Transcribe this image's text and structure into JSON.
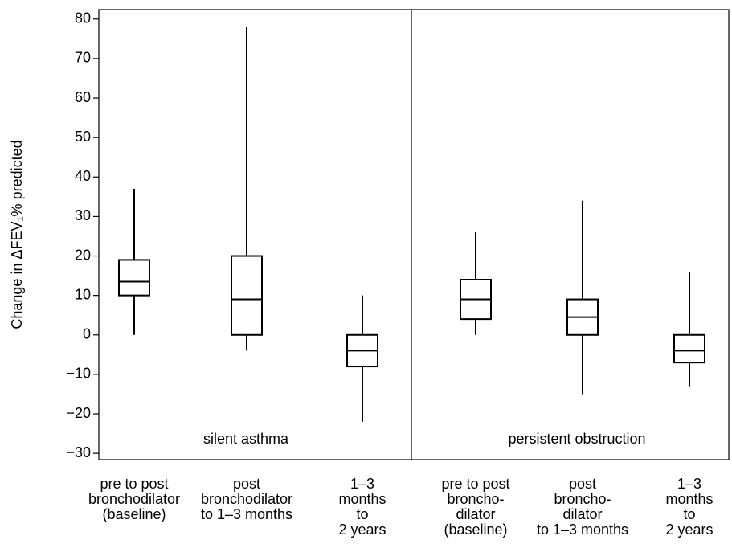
{
  "chart_data": {
    "type": "box",
    "y_label": "Change in ΔFEV₁% predicted",
    "ylim": [
      -31.6,
      82.4
    ],
    "yticks": [
      {
        "value": -30,
        "label": "−30"
      },
      {
        "value": -20,
        "label": "−20"
      },
      {
        "value": -10,
        "label": "−10"
      },
      0,
      10,
      20,
      30,
      40,
      50,
      60,
      70,
      80
    ],
    "panels": [
      "silent asthma",
      "persistent obstruction"
    ],
    "categories": [
      [
        "pre to post",
        "bronchodilator",
        "(baseline)"
      ],
      [
        "post",
        "bronchodilator",
        "to 1–3 months"
      ],
      [
        "1–3",
        "months",
        "to",
        "2 years"
      ],
      [
        "pre to post",
        "broncho-",
        "dilator",
        "(baseline)"
      ],
      [
        "post",
        "broncho-",
        "dilator",
        "to 1–3 months"
      ],
      [
        "1–3",
        "months",
        "to",
        "2 years"
      ]
    ],
    "low": [
      0,
      -4,
      -22,
      0,
      -15,
      -13
    ],
    "q1": [
      10,
      0,
      -8,
      4,
      0,
      -7
    ],
    "median": [
      13.5,
      9,
      -4,
      9,
      4.5,
      -4
    ],
    "q3": [
      19,
      20,
      0,
      14,
      9,
      0
    ],
    "high": [
      37,
      78,
      10,
      26,
      34,
      16
    ]
  }
}
